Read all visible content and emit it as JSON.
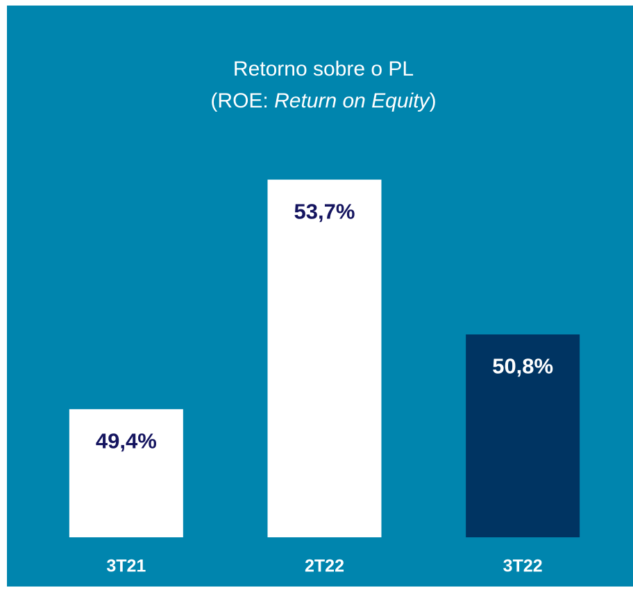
{
  "chart_data": {
    "type": "bar",
    "title": "Retorno sobre o PL",
    "subtitle": [
      "(ROE: ",
      "Return on Equity",
      ")"
    ],
    "categories": [
      "3T21",
      "2T22",
      "3T22"
    ],
    "values": [
      49.4,
      53.7,
      50.8
    ],
    "value_labels": [
      "49,4%",
      "53,7%",
      "50,8%"
    ],
    "colors": [
      "#ffffff",
      "#ffffff",
      "#003462"
    ],
    "value_label_colors": [
      "#14145f",
      "#14145f",
      "#ffffff"
    ],
    "background": "#0085ae",
    "ylim": [
      47,
      55
    ]
  }
}
